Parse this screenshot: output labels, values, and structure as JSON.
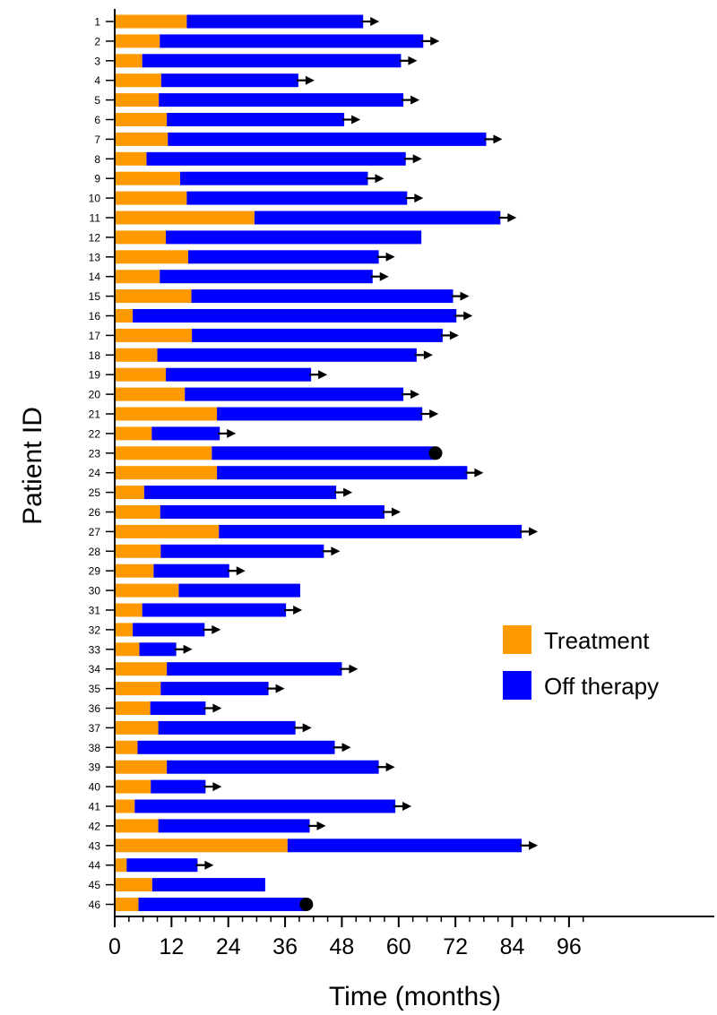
{
  "chart_data": {
    "type": "bar",
    "orientation": "horizontal",
    "stacked": true,
    "xlabel": "Time (months)",
    "ylabel": "Patient ID",
    "xlim": [
      0,
      100
    ],
    "xticks": [
      "0",
      "12",
      "24",
      "36",
      "48",
      "60",
      "72",
      "84",
      "96"
    ],
    "minor_tick_step": 3,
    "grid": false,
    "legend_position": "right-middle",
    "series": [
      {
        "name": "Treatment",
        "color": "#FF9900"
      },
      {
        "name": "Off therapy",
        "color": "#0000FF"
      }
    ],
    "patients": [
      {
        "id": "1",
        "treatment": 15.2,
        "total": 52.5,
        "marker": "arrow"
      },
      {
        "id": "2",
        "treatment": 9.5,
        "total": 65.2,
        "marker": "arrow"
      },
      {
        "id": "3",
        "treatment": 5.8,
        "total": 60.5,
        "marker": "arrow"
      },
      {
        "id": "4",
        "treatment": 9.8,
        "total": 38.8,
        "marker": "arrow"
      },
      {
        "id": "5",
        "treatment": 9.3,
        "total": 61.0,
        "marker": "arrow"
      },
      {
        "id": "6",
        "treatment": 11.0,
        "total": 48.5,
        "marker": "arrow"
      },
      {
        "id": "7",
        "treatment": 11.2,
        "total": 78.5,
        "marker": "arrow"
      },
      {
        "id": "8",
        "treatment": 6.7,
        "total": 61.5,
        "marker": "arrow"
      },
      {
        "id": "9",
        "treatment": 13.8,
        "total": 53.5,
        "marker": "arrow"
      },
      {
        "id": "10",
        "treatment": 15.2,
        "total": 61.8,
        "marker": "arrow"
      },
      {
        "id": "11",
        "treatment": 29.5,
        "total": 81.5,
        "marker": "arrow"
      },
      {
        "id": "12",
        "treatment": 10.8,
        "total": 64.8,
        "marker": "none"
      },
      {
        "id": "13",
        "treatment": 15.5,
        "total": 55.8,
        "marker": "arrow"
      },
      {
        "id": "14",
        "treatment": 9.5,
        "total": 54.5,
        "marker": "arrow"
      },
      {
        "id": "15",
        "treatment": 16.2,
        "total": 71.5,
        "marker": "arrow"
      },
      {
        "id": "16",
        "treatment": 3.8,
        "total": 72.2,
        "marker": "arrow"
      },
      {
        "id": "17",
        "treatment": 16.3,
        "total": 69.3,
        "marker": "arrow"
      },
      {
        "id": "18",
        "treatment": 9.0,
        "total": 63.8,
        "marker": "arrow"
      },
      {
        "id": "19",
        "treatment": 10.8,
        "total": 41.5,
        "marker": "arrow"
      },
      {
        "id": "20",
        "treatment": 14.8,
        "total": 61.0,
        "marker": "arrow"
      },
      {
        "id": "21",
        "treatment": 21.6,
        "total": 65.0,
        "marker": "arrow"
      },
      {
        "id": "22",
        "treatment": 7.8,
        "total": 22.2,
        "marker": "arrow"
      },
      {
        "id": "23",
        "treatment": 20.5,
        "total": 67.8,
        "marker": "dot"
      },
      {
        "id": "24",
        "treatment": 21.6,
        "total": 74.5,
        "marker": "arrow"
      },
      {
        "id": "25",
        "treatment": 6.2,
        "total": 46.8,
        "marker": "arrow"
      },
      {
        "id": "26",
        "treatment": 9.6,
        "total": 57.0,
        "marker": "arrow"
      },
      {
        "id": "27",
        "treatment": 22.0,
        "total": 86.0,
        "marker": "arrow"
      },
      {
        "id": "28",
        "treatment": 9.7,
        "total": 44.2,
        "marker": "arrow"
      },
      {
        "id": "29",
        "treatment": 8.2,
        "total": 24.2,
        "marker": "arrow"
      },
      {
        "id": "30",
        "treatment": 13.5,
        "total": 39.2,
        "marker": "none"
      },
      {
        "id": "31",
        "treatment": 5.8,
        "total": 36.2,
        "marker": "arrow"
      },
      {
        "id": "32",
        "treatment": 3.8,
        "total": 19.0,
        "marker": "arrow"
      },
      {
        "id": "33",
        "treatment": 5.2,
        "total": 13.0,
        "marker": "arrow"
      },
      {
        "id": "34",
        "treatment": 11.0,
        "total": 48.0,
        "marker": "arrow"
      },
      {
        "id": "35",
        "treatment": 9.7,
        "total": 32.5,
        "marker": "arrow"
      },
      {
        "id": "36",
        "treatment": 7.5,
        "total": 19.2,
        "marker": "arrow"
      },
      {
        "id": "37",
        "treatment": 9.2,
        "total": 38.2,
        "marker": "arrow"
      },
      {
        "id": "38",
        "treatment": 4.8,
        "total": 46.5,
        "marker": "arrow"
      },
      {
        "id": "39",
        "treatment": 11.0,
        "total": 55.8,
        "marker": "arrow"
      },
      {
        "id": "40",
        "treatment": 7.6,
        "total": 19.2,
        "marker": "arrow"
      },
      {
        "id": "41",
        "treatment": 4.2,
        "total": 59.3,
        "marker": "arrow"
      },
      {
        "id": "42",
        "treatment": 9.2,
        "total": 41.2,
        "marker": "arrow"
      },
      {
        "id": "43",
        "treatment": 36.5,
        "total": 86.0,
        "marker": "arrow"
      },
      {
        "id": "44",
        "treatment": 2.5,
        "total": 17.5,
        "marker": "arrow"
      },
      {
        "id": "45",
        "treatment": 7.9,
        "total": 31.8,
        "marker": "none"
      },
      {
        "id": "46",
        "treatment": 5.0,
        "total": 40.5,
        "marker": "dot"
      }
    ]
  }
}
